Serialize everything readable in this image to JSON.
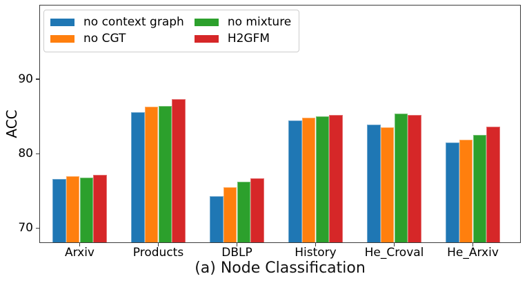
{
  "chart_data": {
    "type": "bar",
    "title": "",
    "caption": "(a) Node Classification",
    "ylabel": "ACC",
    "xlabel": "",
    "categories": [
      "Arxiv",
      "Products",
      "DBLP",
      "History",
      "He_Croval",
      "He_Arxiv"
    ],
    "series": [
      {
        "name": "no context graph",
        "color": "#1f77b4",
        "values": [
          76.6,
          85.6,
          74.3,
          84.5,
          83.9,
          81.5
        ]
      },
      {
        "name": "no CGT",
        "color": "#ff7f0e",
        "values": [
          77.0,
          86.3,
          75.5,
          84.8,
          83.5,
          81.9
        ]
      },
      {
        "name": "no mixture",
        "color": "#2ca02c",
        "values": [
          76.8,
          86.4,
          76.2,
          85.0,
          85.4,
          82.5
        ]
      },
      {
        "name": "H2GFM",
        "color": "#d62728",
        "values": [
          77.2,
          87.3,
          76.7,
          85.2,
          85.2,
          83.6
        ]
      }
    ],
    "ylim": [
      68,
      100
    ],
    "yticks": [
      70,
      80,
      90
    ],
    "grid": false,
    "legend": {
      "position": "upper-left",
      "columns": 2,
      "entries": [
        "no context graph",
        "no CGT",
        "no mixture",
        "H2GFM"
      ]
    },
    "spine_color": "#3a3a3a",
    "background_color": "#ffffff"
  }
}
